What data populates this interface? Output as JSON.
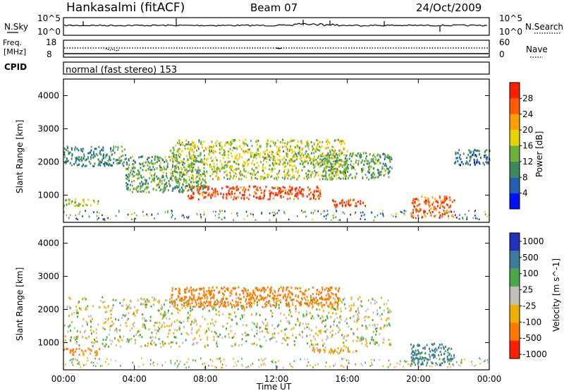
{
  "header": {
    "station": "Hankasalmi (fitACF)",
    "beam": "Beam 07",
    "date": "24/Oct/2009"
  },
  "top_panels": {
    "nsky_label": "N.Sky",
    "nsky_ticks": [
      "10^5",
      "10^0"
    ],
    "nsearch_label": "N.Search",
    "nsearch_ticks": [
      "10^5",
      "10^0"
    ],
    "freq_label_line1": "Freq.",
    "freq_label_line2": "[MHz]",
    "freq_ticks": [
      "18",
      "8"
    ],
    "nave_label": "Nave",
    "nave_ticks": [
      "60",
      "0"
    ],
    "cpid_label": "CPID",
    "cpid_text": "normal (fast stereo) 153"
  },
  "x_axis": {
    "label": "Time UT",
    "ticks": [
      "00:00",
      "04:00",
      "08:00",
      "12:00",
      "16:00",
      "20:00",
      "00:00"
    ]
  },
  "colors": {
    "power_scale": [
      "#0010ff",
      "#2060b0",
      "#3c8a5a",
      "#6cb038",
      "#e8d200",
      "#ffa000",
      "#ff5a00",
      "#ff1e00"
    ],
    "velocity_scale": [
      "#2030b8",
      "#3a7c9c",
      "#48a848",
      "#c0c0b8",
      "#f0b000",
      "#ff7a00",
      "#ff1e00"
    ],
    "ground_scatter": "#c0c0b8"
  },
  "chart_data": [
    {
      "type": "heatmap",
      "title": "Power",
      "ylabel": "Slant Range [km]",
      "xlabel": "",
      "x_range_hours": [
        0,
        24
      ],
      "ylim": [
        180,
        4500
      ],
      "y_ticks": [
        "1000",
        "2000",
        "3000",
        "4000"
      ],
      "colorbar": {
        "label": "Power [dB]",
        "range": [
          0,
          32
        ],
        "ticks": [
          "4",
          "8",
          "12",
          "16",
          "20",
          "24",
          "28"
        ]
      },
      "regions": [
        {
          "name": "morning far-range band",
          "x_hours": [
            0.0,
            3.5
          ],
          "y_km": [
            1900,
            2500
          ],
          "power_db": 9
        },
        {
          "name": "arc descending",
          "x_hours": [
            3.5,
            8.0
          ],
          "y_km": [
            1100,
            2200
          ],
          "power_db": 12
        },
        {
          "name": "main near-range band",
          "x_hours": [
            7.0,
            14.5
          ],
          "y_km": [
            900,
            1300
          ],
          "power_db": 28
        },
        {
          "name": "mid-range patchy echoes",
          "x_hours": [
            6.0,
            16.0
          ],
          "y_km": [
            1500,
            2700
          ],
          "power_db": 16
        },
        {
          "name": "evening arc ascending",
          "x_hours": [
            14.5,
            18.5
          ],
          "y_km": [
            1500,
            2300
          ],
          "power_db": 12
        },
        {
          "name": "strong patch",
          "x_hours": [
            15.0,
            17.0
          ],
          "y_km": [
            650,
            900
          ],
          "power_db": 29
        },
        {
          "name": "late evening echoes",
          "x_hours": [
            19.5,
            22.0
          ],
          "y_km": [
            350,
            1000
          ],
          "power_db": 26
        },
        {
          "name": "early near-range",
          "x_hours": [
            0.0,
            2.0
          ],
          "y_km": [
            700,
            900
          ],
          "power_db": 15
        },
        {
          "name": "late far-range",
          "x_hours": [
            22.0,
            24.0
          ],
          "y_km": [
            1900,
            2400
          ],
          "power_db": 8
        }
      ]
    },
    {
      "type": "heatmap",
      "title": "Velocity",
      "ylabel": "Slant Range [km]",
      "xlabel": "Time UT",
      "x_range_hours": [
        0,
        24
      ],
      "ylim": [
        180,
        4500
      ],
      "y_ticks": [
        "1000",
        "2000",
        "3000",
        "4000"
      ],
      "colorbar": {
        "label": "Velocity [m s^-1]",
        "ticks": [
          "1000",
          "500",
          "100",
          "25",
          "-25",
          "-100",
          "-500",
          "-1000"
        ]
      },
      "regions": [
        {
          "name": "ground scatter arc",
          "x_hours": [
            0.0,
            18.5
          ],
          "y_km": [
            900,
            2400
          ],
          "velocity": 0
        },
        {
          "name": "morning near-range",
          "x_hours": [
            0.0,
            2.0
          ],
          "y_km": [
            650,
            850
          ],
          "velocity": -150
        },
        {
          "name": "mid-range flows",
          "x_hours": [
            6.0,
            15.5
          ],
          "y_km": [
            2100,
            2700
          ],
          "velocity": -200
        },
        {
          "name": "late evening echoes",
          "x_hours": [
            19.5,
            22.0
          ],
          "y_km": [
            350,
            1000
          ],
          "velocity": 150
        },
        {
          "name": "patch",
          "x_hours": [
            14.0,
            16.5
          ],
          "y_km": [
            700,
            900
          ],
          "velocity": -80
        }
      ]
    }
  ]
}
